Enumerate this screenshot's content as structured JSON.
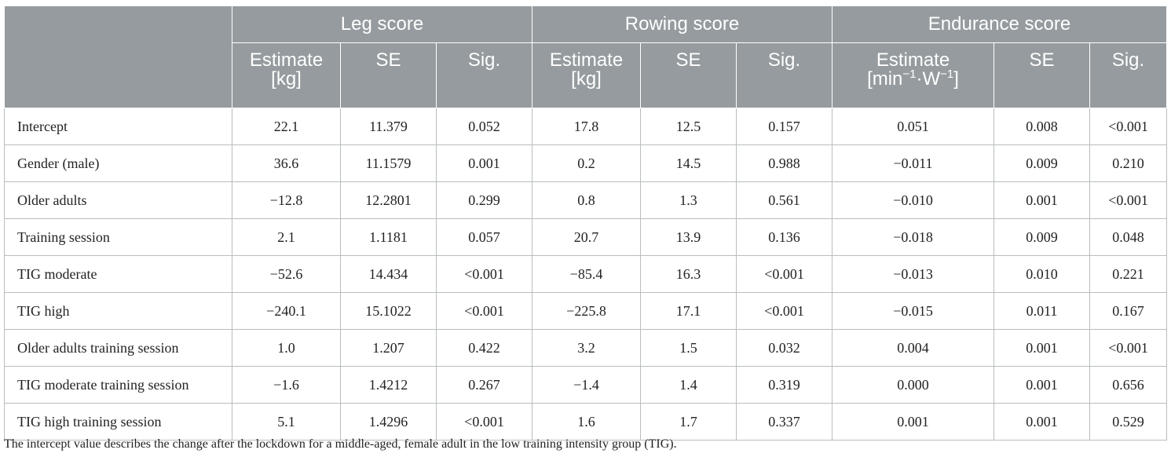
{
  "groups": [
    "Leg score",
    "Rowing score",
    "Endurance score"
  ],
  "subheaders": {
    "estimate_kg": [
      "Estimate",
      "[kg]"
    ],
    "estimate_endurance": [
      "Estimate",
      "[min",
      "−1",
      "·W",
      "−1",
      "]"
    ],
    "se": "SE",
    "sig": "Sig."
  },
  "rows": [
    {
      "label": "Intercept",
      "values": [
        "22.1",
        "11.379",
        "0.052",
        "17.8",
        "12.5",
        "0.157",
        "0.051",
        "0.008",
        "<0.001"
      ]
    },
    {
      "label": "Gender (male)",
      "values": [
        "36.6",
        "11.1579",
        "0.001",
        "0.2",
        "14.5",
        "0.988",
        "−0.011",
        "0.009",
        "0.210"
      ]
    },
    {
      "label": "Older adults",
      "values": [
        "−12.8",
        "12.2801",
        "0.299",
        "0.8",
        "1.3",
        "0.561",
        "−0.010",
        "0.001",
        "<0.001"
      ]
    },
    {
      "label": "Training session",
      "values": [
        "2.1",
        "1.1181",
        "0.057",
        "20.7",
        "13.9",
        "0.136",
        "−0.018",
        "0.009",
        "0.048"
      ]
    },
    {
      "label": "TIG moderate",
      "values": [
        "−52.6",
        "14.434",
        "<0.001",
        "−85.4",
        "16.3",
        "<0.001",
        "−0.013",
        "0.010",
        "0.221"
      ]
    },
    {
      "label": "TIG high",
      "values": [
        "−240.1",
        "15.1022",
        "<0.001",
        "−225.8",
        "17.1",
        "<0.001",
        "−0.015",
        "0.011",
        "0.167"
      ]
    },
    {
      "label": "Older adults training session",
      "values": [
        "1.0",
        "1.207",
        "0.422",
        "3.2",
        "1.5",
        "0.032",
        "0.004",
        "0.001",
        "<0.001"
      ]
    },
    {
      "label": "TIG moderate training session",
      "values": [
        "−1.6",
        "1.4212",
        "0.267",
        "−1.4",
        "1.4",
        "0.319",
        "0.000",
        "0.001",
        "0.656"
      ]
    },
    {
      "label": "TIG high training session",
      "values": [
        "5.1",
        "1.4296",
        "<0.001",
        "1.6",
        "1.7",
        "0.337",
        "0.001",
        "0.001",
        "0.529"
      ]
    }
  ],
  "footnote": "The intercept value describes the change after the lockdown for a middle-aged, female adult in the low training intensity group (TIG).",
  "colors": {
    "header_bg": "#959b9e",
    "header_text": "#ffffff",
    "grid": "#b9bdbf"
  }
}
